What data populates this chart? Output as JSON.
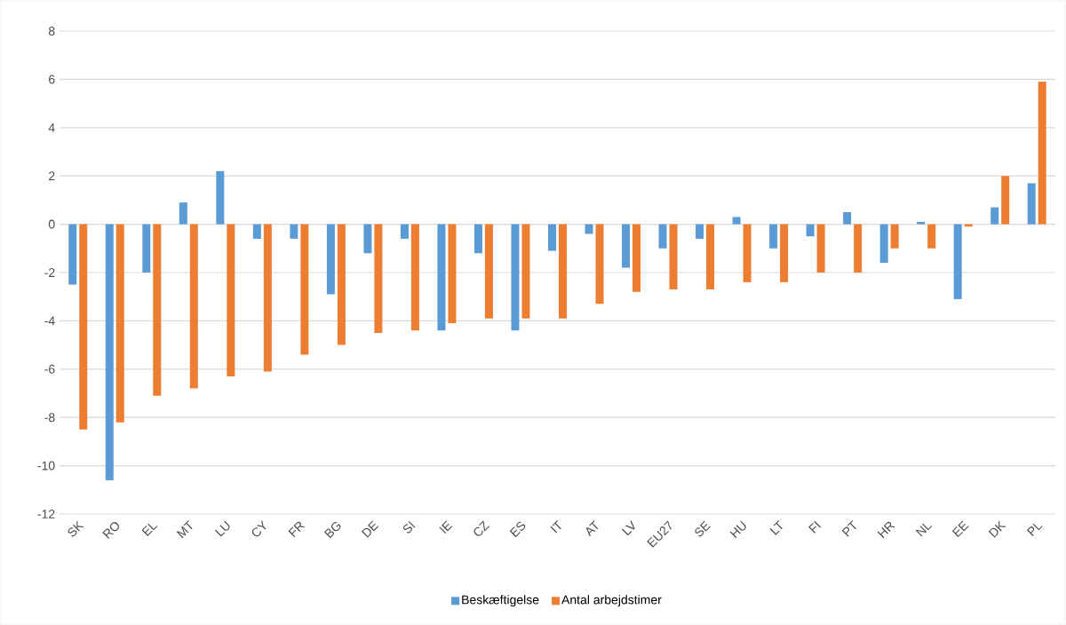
{
  "chart_data": {
    "type": "bar",
    "categories": [
      "SK",
      "RO",
      "EL",
      "MT",
      "LU",
      "CY",
      "FR",
      "BG",
      "DE",
      "SI",
      "IE",
      "CZ",
      "ES",
      "IT",
      "AT",
      "LV",
      "EU27",
      "SE",
      "HU",
      "LT",
      "FI",
      "PT",
      "HR",
      "NL",
      "EE",
      "DK",
      "PL"
    ],
    "series": [
      {
        "name": "Beskæftigelse",
        "color": "#5b9bd5",
        "values": [
          -2.5,
          -10.6,
          -2.0,
          0.9,
          2.2,
          -0.6,
          -0.6,
          -2.9,
          -1.2,
          -0.6,
          -4.4,
          -1.2,
          -4.4,
          -1.1,
          -0.4,
          -1.8,
          -1.0,
          -0.6,
          0.3,
          -1.0,
          -0.5,
          0.5,
          -1.6,
          0.1,
          -3.1,
          0.7,
          1.7
        ]
      },
      {
        "name": "Antal arbejdstimer",
        "color": "#ed7d31",
        "values": [
          -8.5,
          -8.2,
          -7.1,
          -6.8,
          -6.3,
          -6.1,
          -5.4,
          -5.0,
          -4.5,
          -4.4,
          -4.1,
          -3.9,
          -3.9,
          -3.9,
          -3.3,
          -2.8,
          -2.7,
          -2.7,
          -2.4,
          -2.4,
          -2.0,
          -2.0,
          -1.0,
          -1.0,
          -0.1,
          2.0,
          5.9
        ]
      }
    ],
    "ylim": [
      -12,
      8
    ],
    "yticks": [
      -12,
      -10,
      -8,
      -6,
      -4,
      -2,
      0,
      2,
      4,
      6,
      8
    ],
    "grid": "y",
    "legend": "bottom"
  }
}
